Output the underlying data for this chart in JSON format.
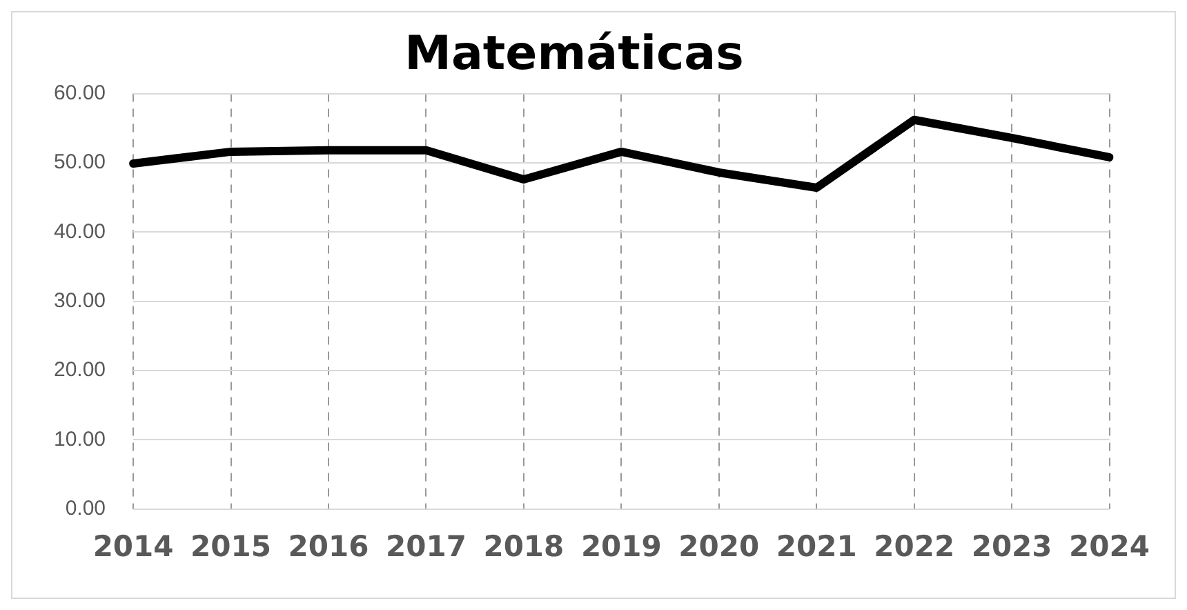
{
  "chart_data": {
    "type": "line",
    "title": "Matemáticas",
    "categories": [
      "2014",
      "2015",
      "2016",
      "2017",
      "2018",
      "2019",
      "2020",
      "2021",
      "2022",
      "2023",
      "2024"
    ],
    "series": [
      {
        "color": "#000000",
        "values": [
          49.9,
          51.6,
          51.8,
          51.8,
          47.6,
          51.6,
          48.6,
          46.4,
          56.2,
          53.6,
          50.8
        ]
      }
    ],
    "ylim": [
      0,
      60
    ],
    "yticks": [
      {
        "value": 0,
        "label": "0.00"
      },
      {
        "value": 10,
        "label": "10.00"
      },
      {
        "value": 20,
        "label": "20.00"
      },
      {
        "value": 30,
        "label": "30.00"
      },
      {
        "value": 40,
        "label": "40.00"
      },
      {
        "value": 50,
        "label": "50.00"
      },
      {
        "value": 60,
        "label": "60.00"
      }
    ],
    "grid": true,
    "legend": false,
    "marker": "none",
    "line_style": "solid"
  }
}
